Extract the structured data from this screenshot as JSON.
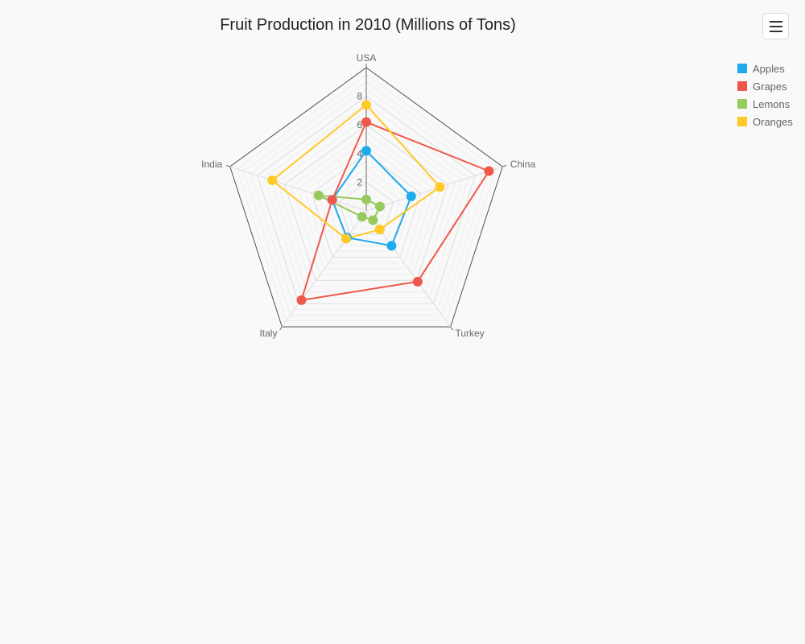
{
  "chart_data": {
    "type": "radar",
    "title": "Fruit Production in 2010 (Millions of Tons)",
    "categories": [
      "USA",
      "China",
      "Turkey",
      "Italy",
      "India"
    ],
    "tick_labels": [
      "2",
      "4",
      "6",
      "8"
    ],
    "rmax": 10,
    "grid": true,
    "legend_position": "top-right",
    "series": [
      {
        "name": "Apples",
        "color": "#1EAAEB",
        "values": [
          4.2,
          3.3,
          3.0,
          2.3,
          2.5
        ]
      },
      {
        "name": "Grapes",
        "color": "#F0574B",
        "values": [
          6.2,
          9.0,
          6.1,
          7.7,
          2.5
        ]
      },
      {
        "name": "Lemons",
        "color": "#97C95D",
        "values": [
          0.8,
          1.0,
          0.8,
          0.5,
          3.5
        ]
      },
      {
        "name": "Oranges",
        "color": "#FFC928",
        "values": [
          7.4,
          5.4,
          1.6,
          2.4,
          6.9
        ]
      }
    ]
  },
  "menu": {
    "icon": "hamburger-menu-icon"
  }
}
